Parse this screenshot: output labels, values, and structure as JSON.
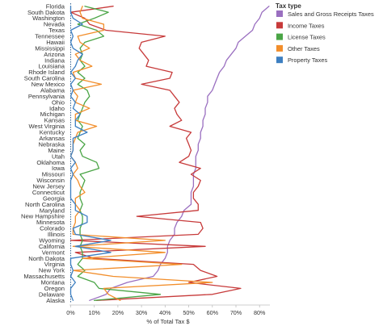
{
  "chart_data": {
    "type": "line",
    "orientation": "horizontal-categories",
    "xlabel": "% of Total Tax $",
    "ylabel": "",
    "xlim": [
      -0.005,
      0.83
    ],
    "x_ticks": [
      0,
      0.1,
      0.2,
      0.3,
      0.4,
      0.5,
      0.6,
      0.7,
      0.8
    ],
    "x_tick_labels": [
      "0%",
      "10%",
      "20%",
      "30%",
      "40%",
      "50%",
      "60%",
      "70%",
      "80%"
    ],
    "grid": false,
    "reference_line": 0,
    "legend": {
      "title": "Tax type",
      "position": "top-right"
    },
    "categories": [
      "Florida",
      "South Dakota",
      "Washington",
      "Nevada",
      "Texas",
      "Tennessee",
      "Hawaii",
      "Mississippi",
      "Arizona",
      "Indiana",
      "Louisiana",
      "Rhode Island",
      "South Carolina",
      "New Mexico",
      "Alabama",
      "Pennsylvania",
      "Ohio",
      "Idaho",
      "Michigan",
      "Kansas",
      "West Virginia",
      "Kentucky",
      "Arkansas",
      "Nebraska",
      "Maine",
      "Utah",
      "Oklahoma",
      "Iowa",
      "Missouri",
      "Wisconsin",
      "New Jersey",
      "Connecticut",
      "Georgia",
      "North Carolina",
      "Maryland",
      "New Hampshire",
      "Minnesota",
      "Colorado",
      "Illinois",
      "Wyoming",
      "California",
      "Vermont",
      "North Dakota",
      "Virginia",
      "New York",
      "Massachusetts",
      "Montana",
      "Oregon",
      "Delaware",
      "Alaska"
    ],
    "series": [
      {
        "name": "Sales and Gross Receipts Taxes",
        "color": "#9a6fc0",
        "values": [
          0.84,
          0.81,
          0.8,
          0.78,
          0.77,
          0.74,
          0.71,
          0.7,
          0.68,
          0.66,
          0.65,
          0.63,
          0.62,
          0.61,
          0.6,
          0.58,
          0.58,
          0.57,
          0.57,
          0.56,
          0.56,
          0.55,
          0.55,
          0.54,
          0.54,
          0.53,
          0.53,
          0.53,
          0.52,
          0.52,
          0.52,
          0.51,
          0.51,
          0.51,
          0.48,
          0.47,
          0.45,
          0.44,
          0.44,
          0.42,
          0.41,
          0.41,
          0.4,
          0.38,
          0.37,
          0.35,
          0.24,
          0.17,
          0.15,
          0.08
        ]
      },
      {
        "name": "Income Taxes",
        "color": "#c73a3a",
        "values": [
          0.18,
          0.0,
          0.06,
          0.08,
          0.15,
          0.4,
          0.3,
          0.29,
          0.31,
          0.33,
          0.32,
          0.43,
          0.42,
          0.3,
          0.42,
          0.44,
          0.46,
          0.44,
          0.45,
          0.47,
          0.42,
          0.51,
          0.49,
          0.5,
          0.51,
          0.5,
          0.46,
          0.55,
          0.51,
          0.55,
          0.54,
          0.52,
          0.52,
          0.54,
          0.54,
          0.28,
          0.55,
          0.56,
          0.54,
          0.0,
          0.57,
          0.02,
          0.1,
          0.52,
          0.55,
          0.62,
          0.5,
          0.72,
          0.6,
          0.11
        ]
      },
      {
        "name": "License Taxes",
        "color": "#4aa546",
        "values": [
          0.06,
          0.16,
          0.1,
          0.03,
          0.11,
          0.14,
          0.06,
          0.04,
          0.05,
          0.04,
          0.06,
          0.03,
          0.06,
          0.03,
          0.07,
          0.08,
          0.06,
          0.05,
          0.04,
          0.03,
          0.05,
          0.04,
          0.03,
          0.06,
          0.04,
          0.05,
          0.11,
          0.12,
          0.04,
          0.06,
          0.05,
          0.04,
          0.04,
          0.05,
          0.04,
          0.05,
          0.05,
          0.04,
          0.04,
          0.05,
          0.04,
          0.05,
          0.05,
          0.03,
          0.06,
          0.03,
          0.1,
          0.12,
          0.38,
          0.1
        ]
      },
      {
        "name": "Other Taxes",
        "color": "#f28e2b",
        "values": [
          0.05,
          0.04,
          0.05,
          0.14,
          0.14,
          0.03,
          0.04,
          0.08,
          0.02,
          0.04,
          0.09,
          0.01,
          0.02,
          0.13,
          0.01,
          0.03,
          0.02,
          0.08,
          0.02,
          0.02,
          0.11,
          0.03,
          0.02,
          0.01,
          0.01,
          0.0,
          0.02,
          0.03,
          0.01,
          0.03,
          0.04,
          0.06,
          0.02,
          0.02,
          0.04,
          0.02,
          0.02,
          0.01,
          0.01,
          0.4,
          0.01,
          0.4,
          0.05,
          0.47,
          0.01,
          0.18,
          0.6,
          0.14,
          0.16,
          0.21
        ]
      },
      {
        "name": "Property Taxes",
        "color": "#3d7fc1",
        "values": [
          0.0,
          0.0,
          0.01,
          0.05,
          0.0,
          0.01,
          0.0,
          0.01,
          0.05,
          0.03,
          0.02,
          0.0,
          0.02,
          0.0,
          0.01,
          0.0,
          0.02,
          0.01,
          0.04,
          0.02,
          0.02,
          0.07,
          0.01,
          0.01,
          0.01,
          0.0,
          0.02,
          0.0,
          0.01,
          0.0,
          0.0,
          0.0,
          0.0,
          0.02,
          0.02,
          0.07,
          0.07,
          0.01,
          0.02,
          0.17,
          0.02,
          0.17,
          0.0,
          0.0,
          0.01,
          0.0,
          0.02,
          0.0,
          0.0,
          0.01
        ]
      }
    ]
  }
}
